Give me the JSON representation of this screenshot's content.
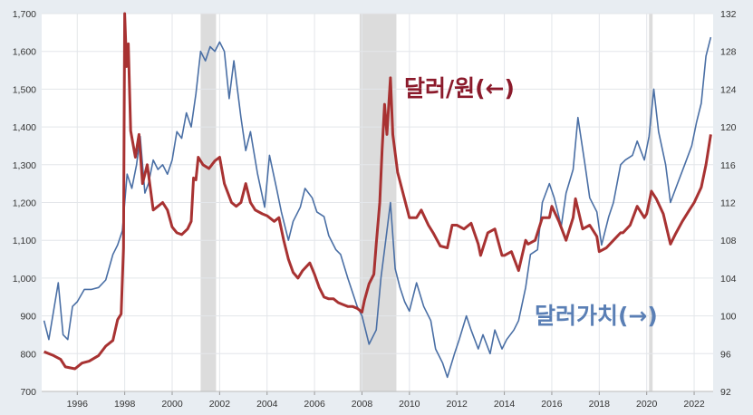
{
  "chart_data": {
    "type": "line",
    "title": "",
    "grid": true,
    "x_range": [
      1994.5,
      2022.8
    ],
    "x_ticks": [
      "1996",
      "1998",
      "2000",
      "2002",
      "2004",
      "2006",
      "2008",
      "2010",
      "2012",
      "2014",
      "2016",
      "2018",
      "2020",
      "2022"
    ],
    "y_left": {
      "range": [
        700,
        1700
      ],
      "tick_labels": [
        "700",
        "800",
        "900",
        "1,000",
        "1,100",
        "1,200",
        "1,300",
        "1,400",
        "1,500",
        "1,600",
        "1,700"
      ]
    },
    "y_right": {
      "range": [
        92,
        132
      ],
      "tick_labels": [
        "92",
        "96",
        "100",
        "104",
        "108",
        "112",
        "116",
        "120",
        "124",
        "128",
        "132"
      ]
    },
    "recessions": [
      [
        2001.2,
        2001.85
      ],
      [
        2007.9,
        2009.45
      ],
      [
        2020.1,
        2020.25
      ]
    ],
    "series": [
      {
        "name": "달러/원(←)",
        "axis": "left",
        "color": "#a83232",
        "points": [
          [
            1994.6,
            805
          ],
          [
            1995.0,
            795
          ],
          [
            1995.3,
            785
          ],
          [
            1995.5,
            765
          ],
          [
            1995.9,
            760
          ],
          [
            1996.2,
            775
          ],
          [
            1996.5,
            780
          ],
          [
            1996.9,
            795
          ],
          [
            1997.2,
            820
          ],
          [
            1997.5,
            835
          ],
          [
            1997.7,
            890
          ],
          [
            1997.85,
            905
          ],
          [
            1997.95,
            1080
          ],
          [
            1998.0,
            1700
          ],
          [
            1998.08,
            1560
          ],
          [
            1998.15,
            1620
          ],
          [
            1998.25,
            1390
          ],
          [
            1998.45,
            1320
          ],
          [
            1998.6,
            1380
          ],
          [
            1998.75,
            1250
          ],
          [
            1998.95,
            1300
          ],
          [
            1999.2,
            1180
          ],
          [
            1999.4,
            1190
          ],
          [
            1999.6,
            1200
          ],
          [
            1999.8,
            1180
          ],
          [
            2000.0,
            1135
          ],
          [
            2000.2,
            1120
          ],
          [
            2000.4,
            1115
          ],
          [
            2000.65,
            1130
          ],
          [
            2000.8,
            1150
          ],
          [
            2000.9,
            1265
          ],
          [
            2001.0,
            1260
          ],
          [
            2001.1,
            1320
          ],
          [
            2001.3,
            1300
          ],
          [
            2001.55,
            1290
          ],
          [
            2001.8,
            1310
          ],
          [
            2002.0,
            1320
          ],
          [
            2002.2,
            1250
          ],
          [
            2002.5,
            1200
          ],
          [
            2002.7,
            1190
          ],
          [
            2002.9,
            1200
          ],
          [
            2003.1,
            1250
          ],
          [
            2003.3,
            1200
          ],
          [
            2003.5,
            1180
          ],
          [
            2003.8,
            1170
          ],
          [
            2004.0,
            1165
          ],
          [
            2004.3,
            1150
          ],
          [
            2004.5,
            1160
          ],
          [
            2004.7,
            1100
          ],
          [
            2004.9,
            1050
          ],
          [
            2005.1,
            1015
          ],
          [
            2005.3,
            1000
          ],
          [
            2005.5,
            1020
          ],
          [
            2005.8,
            1040
          ],
          [
            2006.0,
            1010
          ],
          [
            2006.2,
            975
          ],
          [
            2006.4,
            950
          ],
          [
            2006.6,
            945
          ],
          [
            2006.8,
            945
          ],
          [
            2007.0,
            935
          ],
          [
            2007.2,
            930
          ],
          [
            2007.4,
            925
          ],
          [
            2007.6,
            925
          ],
          [
            2007.8,
            920
          ],
          [
            2008.0,
            910
          ],
          [
            2008.1,
            940
          ],
          [
            2008.3,
            985
          ],
          [
            2008.5,
            1010
          ],
          [
            2008.6,
            1090
          ],
          [
            2008.75,
            1200
          ],
          [
            2008.85,
            1340
          ],
          [
            2008.95,
            1460
          ],
          [
            2009.05,
            1380
          ],
          [
            2009.15,
            1480
          ],
          [
            2009.2,
            1530
          ],
          [
            2009.3,
            1380
          ],
          [
            2009.5,
            1280
          ],
          [
            2009.75,
            1220
          ],
          [
            2010.0,
            1160
          ],
          [
            2010.3,
            1160
          ],
          [
            2010.5,
            1180
          ],
          [
            2010.8,
            1140
          ],
          [
            2011.0,
            1120
          ],
          [
            2011.3,
            1085
          ],
          [
            2011.6,
            1080
          ],
          [
            2011.8,
            1140
          ],
          [
            2012.0,
            1140
          ],
          [
            2012.3,
            1130
          ],
          [
            2012.6,
            1145
          ],
          [
            2012.9,
            1090
          ],
          [
            2013.0,
            1060
          ],
          [
            2013.3,
            1120
          ],
          [
            2013.6,
            1130
          ],
          [
            2013.9,
            1060
          ],
          [
            2014.0,
            1060
          ],
          [
            2014.3,
            1070
          ],
          [
            2014.6,
            1020
          ],
          [
            2014.9,
            1100
          ],
          [
            2015.0,
            1090
          ],
          [
            2015.3,
            1100
          ],
          [
            2015.6,
            1160
          ],
          [
            2015.9,
            1160
          ],
          [
            2016.0,
            1190
          ],
          [
            2016.3,
            1150
          ],
          [
            2016.6,
            1100
          ],
          [
            2016.9,
            1160
          ],
          [
            2017.0,
            1210
          ],
          [
            2017.3,
            1130
          ],
          [
            2017.6,
            1140
          ],
          [
            2017.9,
            1110
          ],
          [
            2018.0,
            1070
          ],
          [
            2018.3,
            1080
          ],
          [
            2018.6,
            1100
          ],
          [
            2018.9,
            1120
          ],
          [
            2019.0,
            1120
          ],
          [
            2019.3,
            1140
          ],
          [
            2019.6,
            1190
          ],
          [
            2019.9,
            1160
          ],
          [
            2020.0,
            1170
          ],
          [
            2020.2,
            1230
          ],
          [
            2020.4,
            1210
          ],
          [
            2020.7,
            1170
          ],
          [
            2021.0,
            1090
          ],
          [
            2021.2,
            1115
          ],
          [
            2021.5,
            1150
          ],
          [
            2021.8,
            1180
          ],
          [
            2022.0,
            1200
          ],
          [
            2022.3,
            1240
          ],
          [
            2022.5,
            1300
          ],
          [
            2022.7,
            1380
          ]
        ]
      },
      {
        "name": "달러가치(→)",
        "axis": "right",
        "color": "#4a6fa5",
        "points": [
          [
            1994.6,
            99.5
          ],
          [
            1994.8,
            97.5
          ],
          [
            1995.0,
            100.5
          ],
          [
            1995.2,
            103.5
          ],
          [
            1995.4,
            98.0
          ],
          [
            1995.6,
            97.5
          ],
          [
            1995.8,
            101.0
          ],
          [
            1996.0,
            101.5
          ],
          [
            1996.3,
            102.8
          ],
          [
            1996.6,
            102.8
          ],
          [
            1996.9,
            103.0
          ],
          [
            1997.2,
            103.8
          ],
          [
            1997.5,
            106.5
          ],
          [
            1997.7,
            107.5
          ],
          [
            1997.9,
            109.0
          ],
          [
            1998.1,
            115.0
          ],
          [
            1998.3,
            113.5
          ],
          [
            1998.5,
            116.0
          ],
          [
            1998.65,
            119.0
          ],
          [
            1998.85,
            113.0
          ],
          [
            1999.0,
            114.0
          ],
          [
            1999.2,
            116.5
          ],
          [
            1999.4,
            115.5
          ],
          [
            1999.6,
            116.0
          ],
          [
            1999.8,
            115.0
          ],
          [
            2000.0,
            116.5
          ],
          [
            2000.2,
            119.5
          ],
          [
            2000.4,
            118.8
          ],
          [
            2000.6,
            121.5
          ],
          [
            2000.8,
            120.0
          ],
          [
            2001.0,
            123.5
          ],
          [
            2001.2,
            128.0
          ],
          [
            2001.4,
            127.0
          ],
          [
            2001.6,
            128.5
          ],
          [
            2001.8,
            128.0
          ],
          [
            2002.0,
            129.0
          ],
          [
            2002.2,
            128.0
          ],
          [
            2002.4,
            123.0
          ],
          [
            2002.6,
            127.0
          ],
          [
            2002.9,
            121.0
          ],
          [
            2003.1,
            117.5
          ],
          [
            2003.3,
            119.5
          ],
          [
            2003.6,
            115.0
          ],
          [
            2003.9,
            111.5
          ],
          [
            2004.1,
            117.0
          ],
          [
            2004.4,
            113.5
          ],
          [
            2004.6,
            111.0
          ],
          [
            2004.9,
            108.0
          ],
          [
            2005.1,
            110.0
          ],
          [
            2005.4,
            111.5
          ],
          [
            2005.6,
            113.5
          ],
          [
            2005.9,
            112.5
          ],
          [
            2006.1,
            111.0
          ],
          [
            2006.4,
            110.5
          ],
          [
            2006.6,
            108.5
          ],
          [
            2006.9,
            107.0
          ],
          [
            2007.1,
            106.5
          ],
          [
            2007.4,
            104.0
          ],
          [
            2007.6,
            102.5
          ],
          [
            2007.8,
            101.0
          ],
          [
            2008.0,
            100.0
          ],
          [
            2008.3,
            97.0
          ],
          [
            2008.6,
            98.5
          ],
          [
            2008.8,
            104.0
          ],
          [
            2009.0,
            108.0
          ],
          [
            2009.2,
            112.0
          ],
          [
            2009.4,
            105.0
          ],
          [
            2009.6,
            103.0
          ],
          [
            2009.8,
            101.5
          ],
          [
            2010.0,
            100.5
          ],
          [
            2010.3,
            103.5
          ],
          [
            2010.6,
            101.0
          ],
          [
            2010.9,
            99.5
          ],
          [
            2011.1,
            96.5
          ],
          [
            2011.4,
            95.0
          ],
          [
            2011.6,
            93.5
          ],
          [
            2011.9,
            96.0
          ],
          [
            2012.1,
            97.5
          ],
          [
            2012.4,
            100.0
          ],
          [
            2012.6,
            98.5
          ],
          [
            2012.9,
            96.5
          ],
          [
            2013.1,
            98.0
          ],
          [
            2013.4,
            96.0
          ],
          [
            2013.6,
            98.5
          ],
          [
            2013.9,
            96.5
          ],
          [
            2014.1,
            97.5
          ],
          [
            2014.4,
            98.5
          ],
          [
            2014.6,
            99.5
          ],
          [
            2014.9,
            103.0
          ],
          [
            2015.1,
            106.5
          ],
          [
            2015.4,
            107.0
          ],
          [
            2015.6,
            112.0
          ],
          [
            2015.9,
            114.0
          ],
          [
            2016.1,
            112.5
          ],
          [
            2016.4,
            109.5
          ],
          [
            2016.6,
            113.0
          ],
          [
            2016.9,
            115.5
          ],
          [
            2017.1,
            121.0
          ],
          [
            2017.4,
            116.0
          ],
          [
            2017.6,
            112.5
          ],
          [
            2017.9,
            111.0
          ],
          [
            2018.1,
            107.5
          ],
          [
            2018.4,
            110.5
          ],
          [
            2018.6,
            112.0
          ],
          [
            2018.9,
            116.0
          ],
          [
            2019.1,
            116.5
          ],
          [
            2019.4,
            117.0
          ],
          [
            2019.6,
            118.5
          ],
          [
            2019.9,
            116.5
          ],
          [
            2020.1,
            119.0
          ],
          [
            2020.3,
            124.0
          ],
          [
            2020.5,
            119.5
          ],
          [
            2020.8,
            116.0
          ],
          [
            2021.0,
            112.0
          ],
          [
            2021.3,
            114.0
          ],
          [
            2021.6,
            116.0
          ],
          [
            2021.9,
            118.0
          ],
          [
            2022.1,
            120.5
          ],
          [
            2022.3,
            122.5
          ],
          [
            2022.5,
            127.5
          ],
          [
            2022.7,
            129.5
          ]
        ]
      }
    ],
    "annotations": [
      {
        "text": "달러/원(←)",
        "series": 0
      },
      {
        "text": "달러가치(→)",
        "series": 1
      }
    ]
  }
}
